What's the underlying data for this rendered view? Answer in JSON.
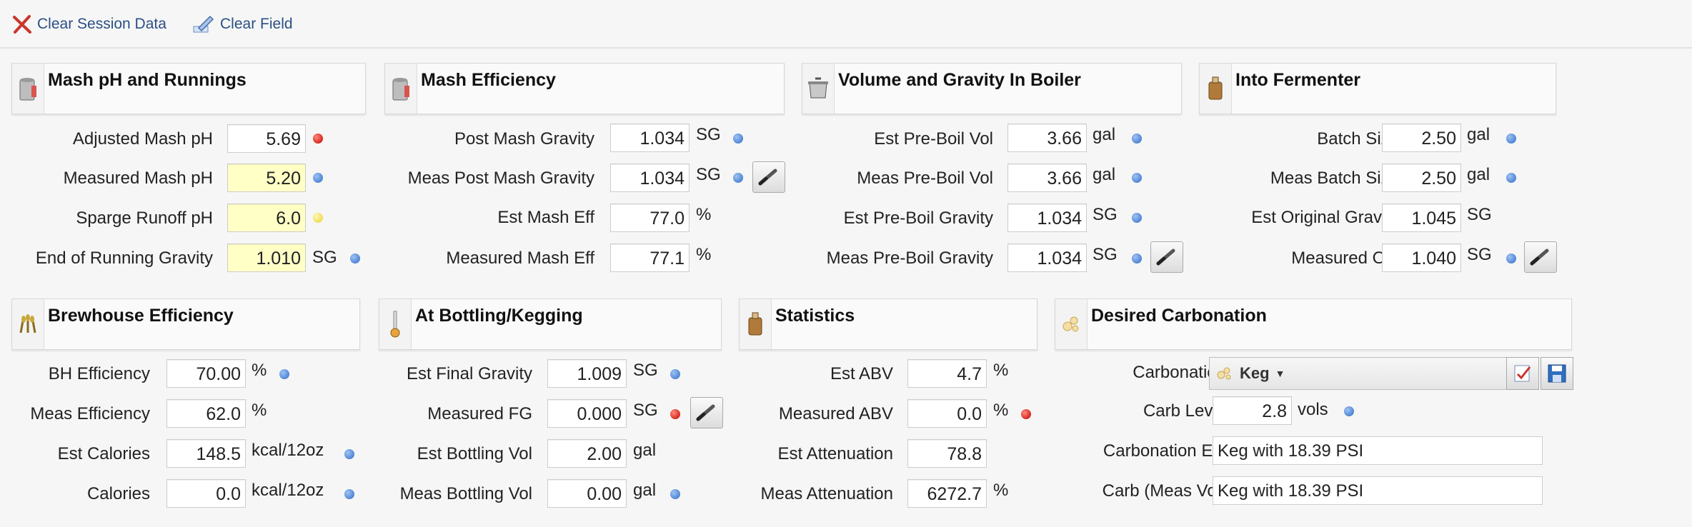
{
  "toolbar": {
    "clear_session_label": "Clear Session Data",
    "clear_field_label": "Clear Field"
  },
  "colors": {
    "link": "#2a4f84",
    "required_field_bg": "#ffffc6",
    "status_blue": "#4f86d6",
    "status_red": "#d6281c",
    "status_yellow": "#eedd55"
  },
  "panels": {
    "mash_ph": {
      "title": "Mash pH and Runnings",
      "icon": "mash-tun-icon",
      "rows": [
        {
          "label": "Adjusted Mash pH",
          "value": "5.69",
          "unit": "",
          "status": "red",
          "editable": false
        },
        {
          "label": "Measured Mash pH",
          "value": "5.20",
          "unit": "",
          "status": "blue",
          "editable": true
        },
        {
          "label": "Sparge Runoff pH",
          "value": "6.0",
          "unit": "",
          "status": "yellow",
          "editable": true
        },
        {
          "label": "End of Running Gravity",
          "value": "1.010",
          "unit": "SG",
          "status": "blue",
          "editable": true
        }
      ]
    },
    "mash_eff": {
      "title": "Mash Efficiency",
      "icon": "mash-tun-icon",
      "rows": [
        {
          "label": "Post Mash Gravity",
          "value": "1.034",
          "unit": "SG",
          "status": "blue"
        },
        {
          "label": "Meas Post Mash Gravity",
          "value": "1.034",
          "unit": "SG",
          "status": "blue",
          "tool": "refractometer-icon"
        },
        {
          "label": "Est Mash Eff",
          "value": "77.0",
          "unit": "%",
          "status": ""
        },
        {
          "label": "Measured Mash Eff",
          "value": "77.1",
          "unit": "%",
          "status": ""
        }
      ]
    },
    "boiler": {
      "title": "Volume and Gravity In Boiler",
      "icon": "kettle-icon",
      "rows": [
        {
          "label": "Est Pre-Boil Vol",
          "value": "3.66",
          "unit": "gal",
          "status": "blue"
        },
        {
          "label": "Meas Pre-Boil Vol",
          "value": "3.66",
          "unit": "gal",
          "status": "blue"
        },
        {
          "label": "Est Pre-Boil Gravity",
          "value": "1.034",
          "unit": "SG",
          "status": "blue"
        },
        {
          "label": "Meas Pre-Boil Gravity",
          "value": "1.034",
          "unit": "SG",
          "status": "blue",
          "tool": "refractometer-icon"
        }
      ]
    },
    "fermenter": {
      "title": "Into Fermenter",
      "icon": "fermenter-icon",
      "rows": [
        {
          "label": "Batch Size",
          "value": "2.50",
          "unit": "gal",
          "status": "blue"
        },
        {
          "label": "Meas Batch Size",
          "value": "2.50",
          "unit": "gal",
          "status": "blue"
        },
        {
          "label": "Est Original Gravity",
          "value": "1.045",
          "unit": "SG",
          "status": ""
        },
        {
          "label": "Measured OG",
          "value": "1.040",
          "unit": "SG",
          "status": "blue",
          "tool": "refractometer-icon"
        }
      ]
    },
    "brewhouse": {
      "title": "Brewhouse Efficiency",
      "icon": "grain-icon",
      "rows": [
        {
          "label": "BH Efficiency",
          "value": "70.00",
          "unit": "%",
          "status": "blue"
        },
        {
          "label": "Meas Efficiency",
          "value": "62.0",
          "unit": "%",
          "status": ""
        },
        {
          "label": "Est Calories",
          "value": "148.5",
          "unit": "kcal/12oz",
          "status": "blue"
        },
        {
          "label": "Calories",
          "value": "0.0",
          "unit": "kcal/12oz",
          "status": "blue"
        }
      ]
    },
    "bottling": {
      "title": "At Bottling/Kegging",
      "icon": "hydrometer-icon",
      "rows": [
        {
          "label": "Est Final Gravity",
          "value": "1.009",
          "unit": "SG",
          "status": "blue"
        },
        {
          "label": "Measured FG",
          "value": "0.000",
          "unit": "SG",
          "status": "red",
          "tool": "refractometer-icon"
        },
        {
          "label": "Est Bottling Vol",
          "value": "2.00",
          "unit": "gal",
          "status": ""
        },
        {
          "label": "Meas Bottling Vol",
          "value": "0.00",
          "unit": "gal",
          "status": "blue"
        }
      ]
    },
    "statistics": {
      "title": "Statistics",
      "icon": "fermenter-icon",
      "rows": [
        {
          "label": "Est ABV",
          "value": "4.7",
          "unit": "%",
          "status": ""
        },
        {
          "label": "Measured ABV",
          "value": "0.0",
          "unit": "%",
          "status": "red"
        },
        {
          "label": "Est Attenuation",
          "value": "78.8",
          "unit": "",
          "status": ""
        },
        {
          "label": "Meas Attenuation",
          "value": "6272.7",
          "unit": "%",
          "status": ""
        }
      ]
    },
    "carbonation": {
      "title": "Desired Carbonation",
      "icon": "bubbles-icon",
      "carbonation_label": "Carbonation",
      "carbonation_value": "Keg",
      "carb_level_label": "Carb Level",
      "carb_level_value": "2.8",
      "carb_level_unit": "vols",
      "carb_est_label": "Carbonation Est",
      "carb_est_value": "Keg with 18.39 PSI",
      "carb_meas_label": "Carb (Meas Vol)",
      "carb_meas_value": "Keg with 18.39 PSI"
    }
  }
}
